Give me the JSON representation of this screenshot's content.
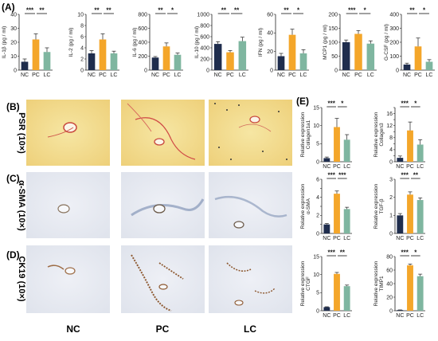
{
  "panels": {
    "a_label": "(A)",
    "b_label": "(B)",
    "c_label": "(C)",
    "d_label": "(D)",
    "e_label": "(E)"
  },
  "stains": [
    "PSR (10×)",
    "α-SMA (10×)",
    "CK19 (10×)"
  ],
  "groups": [
    "NC",
    "PC",
    "LC"
  ],
  "colors": {
    "NC": "#1f2d4d",
    "PC": "#f4a62a",
    "LC": "#7fb6a0",
    "psr_bg": "#f0d98a",
    "ihc_bg": "#e8ebf2"
  },
  "chart_data": [
    {
      "type": "bar",
      "panel": "A",
      "categories": [
        "NC",
        "PC",
        "LC"
      ],
      "values": [
        6,
        22,
        13
      ],
      "errors": [
        2,
        4,
        3
      ],
      "ylabel": "IL-1β (pg / ml)",
      "yticks": [
        0,
        10,
        20,
        30,
        40
      ],
      "ylim": [
        0,
        40
      ],
      "significance": [
        "***",
        "**"
      ]
    },
    {
      "type": "bar",
      "panel": "A",
      "categories": [
        "NC",
        "PC",
        "LC"
      ],
      "values": [
        3,
        5.5,
        3
      ],
      "errors": [
        0.5,
        1,
        0.4
      ],
      "ylabel": "IL-2 (pg / ml)",
      "yticks": [
        0,
        2,
        4,
        6,
        8,
        10
      ],
      "ylim": [
        0,
        10
      ],
      "significance": [
        "**",
        "**"
      ]
    },
    {
      "type": "bar",
      "panel": "A",
      "categories": [
        "NC",
        "PC",
        "LC"
      ],
      "values": [
        180,
        340,
        220
      ],
      "errors": [
        15,
        50,
        25
      ],
      "ylabel": "IL-6 (pg / ml)",
      "yticks": [
        0,
        200,
        400,
        600,
        800
      ],
      "ylim": [
        0,
        800
      ],
      "significance": [
        "**",
        "*"
      ]
    },
    {
      "type": "bar",
      "panel": "A",
      "categories": [
        "NC",
        "PC",
        "LC"
      ],
      "values": [
        470,
        320,
        520
      ],
      "errors": [
        40,
        30,
        70
      ],
      "ylabel": "IL-10 (pg / ml)",
      "yticks": [
        0,
        200,
        400,
        600,
        800,
        1000
      ],
      "ylim": [
        0,
        1000
      ],
      "significance": [
        "**",
        "**"
      ]
    },
    {
      "type": "bar",
      "panel": "A",
      "categories": [
        "NC",
        "PC",
        "LC"
      ],
      "values": [
        15,
        38,
        18
      ],
      "errors": [
        3,
        6,
        4
      ],
      "ylabel": "IFN (pg / ml)",
      "yticks": [
        0,
        20,
        40,
        60
      ],
      "ylim": [
        0,
        60
      ],
      "significance": [
        "**",
        "*"
      ]
    },
    {
      "type": "bar",
      "panel": "A",
      "categories": [
        "NC",
        "PC",
        "LC"
      ],
      "values": [
        100,
        130,
        95
      ],
      "errors": [
        8,
        12,
        10
      ],
      "ylabel": "MCP1 (pg / ml)",
      "yticks": [
        0,
        50,
        100,
        150,
        200
      ],
      "ylim": [
        0,
        200
      ],
      "significance": [
        "***",
        "*"
      ]
    },
    {
      "type": "bar",
      "panel": "A",
      "categories": [
        "NC",
        "PC",
        "LC"
      ],
      "values": [
        40,
        170,
        60
      ],
      "errors": [
        10,
        60,
        15
      ],
      "ylabel": "G-CSF (pg / ml)",
      "yticks": [
        0,
        100,
        200,
        300,
        400
      ],
      "ylim": [
        0,
        400
      ],
      "significance": [
        "**",
        "*"
      ]
    },
    {
      "type": "bar",
      "panel": "E",
      "categories": [
        "NC",
        "PC",
        "LC"
      ],
      "values": [
        1,
        9.6,
        6.1
      ],
      "errors": [
        0.3,
        2.4,
        1.4
      ],
      "ylabel": "Relative expression Collagen1a1",
      "yticks": [
        0,
        5,
        10,
        15
      ],
      "ylim": [
        0,
        15
      ],
      "significance": [
        "***",
        "*"
      ]
    },
    {
      "type": "bar",
      "panel": "E",
      "categories": [
        "NC",
        "PC",
        "LC"
      ],
      "values": [
        1.3,
        10.4,
        5.7
      ],
      "errors": [
        0.6,
        2.8,
        1.6
      ],
      "ylabel": "Relative expression Collagen3",
      "yticks": [
        0,
        2,
        4,
        6,
        8,
        10,
        12,
        14,
        16,
        18
      ],
      "ylim": [
        0,
        18
      ],
      "significance": [
        "***",
        "*"
      ]
    },
    {
      "type": "bar",
      "panel": "E",
      "categories": [
        "NC",
        "PC",
        "LC"
      ],
      "values": [
        1,
        4.4,
        2.7
      ],
      "errors": [
        0.1,
        0.3,
        0.2
      ],
      "ylabel": "Relative expression α-SMA",
      "yticks": [
        0,
        1,
        2,
        3,
        4,
        5,
        6
      ],
      "ylim": [
        0,
        6
      ],
      "significance": [
        "***",
        "***"
      ]
    },
    {
      "type": "bar",
      "panel": "E",
      "categories": [
        "NC",
        "PC",
        "LC"
      ],
      "values": [
        1,
        2.15,
        1.85
      ],
      "errors": [
        0.1,
        0.15,
        0.12
      ],
      "ylabel": "Relative expression TGF-β",
      "yticks": [
        0,
        1,
        2,
        3
      ],
      "ylim": [
        0,
        3
      ],
      "significance": [
        "***",
        "**"
      ]
    },
    {
      "type": "bar",
      "panel": "E",
      "categories": [
        "NC",
        "PC",
        "LC"
      ],
      "values": [
        1,
        10.2,
        6.8
      ],
      "errors": [
        0.1,
        0.4,
        0.3
      ],
      "ylabel": "Relative expression CTGF",
      "yticks": [
        0,
        5,
        10,
        15
      ],
      "ylim": [
        0,
        15
      ],
      "significance": [
        "***",
        "**"
      ]
    },
    {
      "type": "bar",
      "panel": "E",
      "categories": [
        "NC",
        "PC",
        "LC"
      ],
      "values": [
        1,
        67,
        51
      ],
      "errors": [
        0.2,
        2,
        3
      ],
      "ylabel": "Relative expression TIMP1",
      "yticks": [
        0,
        20,
        40,
        60,
        80
      ],
      "ylim": [
        0,
        80
      ],
      "significance": [
        "***",
        "*"
      ]
    }
  ]
}
